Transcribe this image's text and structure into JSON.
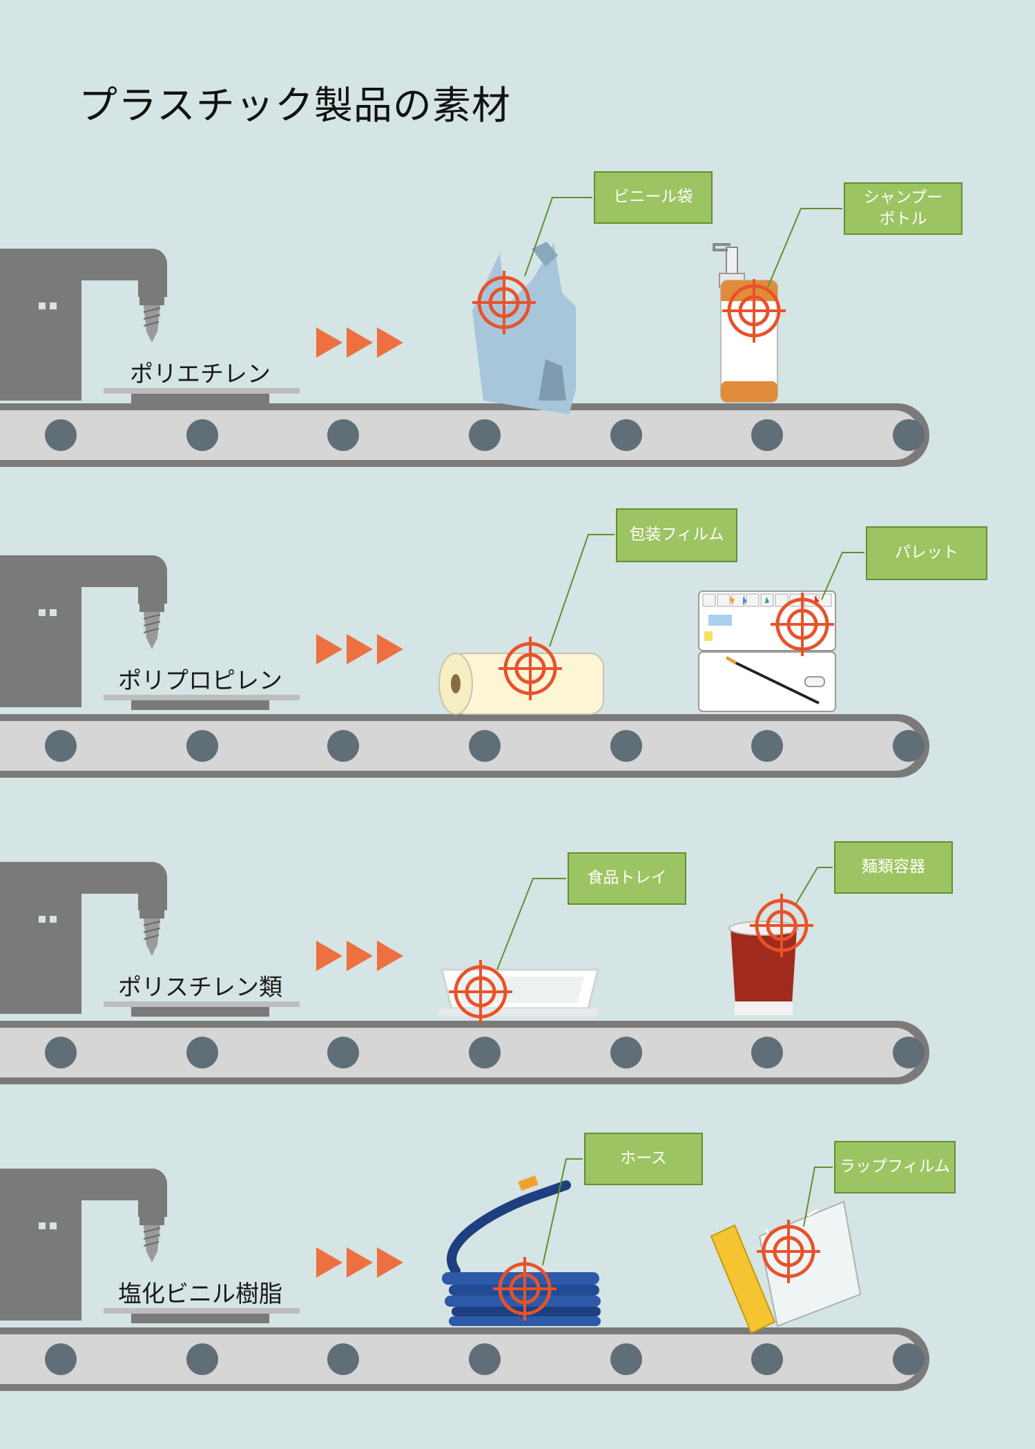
{
  "title": "プラスチック製品の素材",
  "colors": {
    "background": "#d5e4e4",
    "machine": "#7a7a7a",
    "belt": "#d6d6d6",
    "wheel": "#606e78",
    "arrow": "#ee7040",
    "target": "#e8522a",
    "label": "#9dc462",
    "leader": "#5f9030"
  },
  "rows": [
    {
      "material": "ポリエチレン",
      "products": [
        {
          "label": "ビニール袋",
          "icon": "plastic-bag-icon"
        },
        {
          "label": "シャンプー\nボトル",
          "icon": "shampoo-bottle-icon"
        }
      ]
    },
    {
      "material": "ポリプロピレン",
      "products": [
        {
          "label": "包装フィルム",
          "icon": "film-roll-icon"
        },
        {
          "label": "パレット",
          "icon": "paint-palette-icon"
        }
      ]
    },
    {
      "material": "ポリスチレン類",
      "products": [
        {
          "label": "食品トレイ",
          "icon": "food-tray-icon"
        },
        {
          "label": "麺類容器",
          "icon": "noodle-cup-icon"
        }
      ]
    },
    {
      "material": "塩化ビニル樹脂",
      "products": [
        {
          "label": "ホース",
          "icon": "hose-icon"
        },
        {
          "label": "ラップフィルム",
          "icon": "wrap-film-icon"
        }
      ]
    }
  ]
}
